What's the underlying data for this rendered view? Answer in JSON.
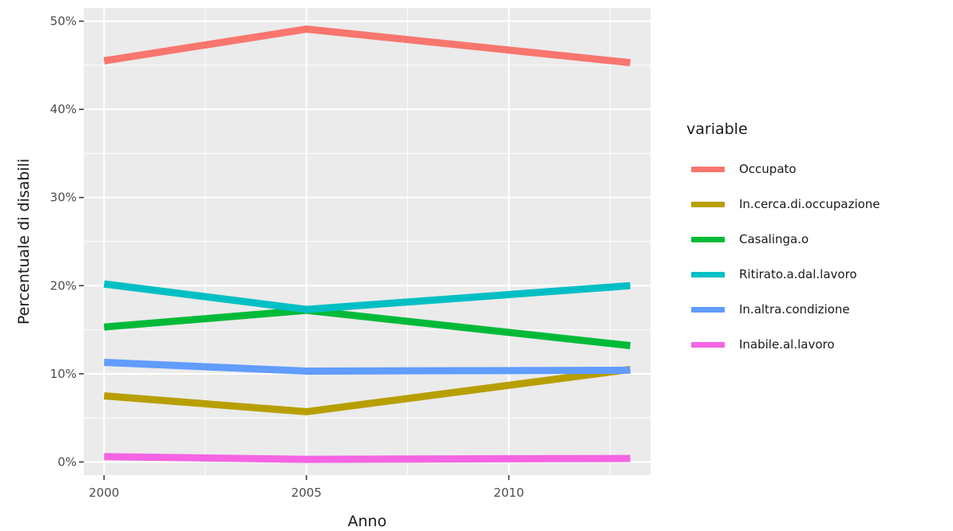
{
  "chart_data": {
    "type": "line",
    "title": "",
    "xlabel": "Anno",
    "ylabel": "Percentuale di disabili",
    "xlim": [
      1999.5,
      2013.5
    ],
    "ylim": [
      -1.5,
      51.5
    ],
    "x_ticks": [
      2000,
      2005,
      2010
    ],
    "x_tick_labels": [
      "2000",
      "2005",
      "2010"
    ],
    "y_ticks": [
      0,
      10,
      20,
      30,
      40,
      50
    ],
    "y_tick_labels": [
      "0%",
      "10%",
      "20%",
      "30%",
      "40%",
      "50%"
    ],
    "y_unit": "percent",
    "grid": true,
    "background": "#ebebeb",
    "legend_title": "variable",
    "legend_position": "right",
    "series": [
      {
        "name": "Occupato",
        "color": "#f8766d",
        "x": [
          2000,
          2005,
          2013
        ],
        "values": [
          45.5,
          49.1,
          45.3
        ]
      },
      {
        "name": "In.cerca.di.occupazione",
        "color": "#b79f00",
        "x": [
          2000,
          2005,
          2013
        ],
        "values": [
          7.5,
          5.7,
          10.5
        ]
      },
      {
        "name": "Casalinga.o",
        "color": "#00ba38",
        "x": [
          2000,
          2005,
          2013
        ],
        "values": [
          15.3,
          17.2,
          13.2
        ]
      },
      {
        "name": "Ritirato.a.dal.lavoro",
        "color": "#00bfc4",
        "x": [
          2000,
          2005,
          2013
        ],
        "values": [
          20.2,
          17.3,
          20.0
        ]
      },
      {
        "name": "In.altra.condizione",
        "color": "#619cff",
        "x": [
          2000,
          2005,
          2013
        ],
        "values": [
          11.3,
          10.3,
          10.4
        ]
      },
      {
        "name": "Inabile.al.lavoro",
        "color": "#f564e3",
        "x": [
          2000,
          2005,
          2013
        ],
        "values": [
          0.6,
          0.3,
          0.4
        ]
      }
    ]
  }
}
